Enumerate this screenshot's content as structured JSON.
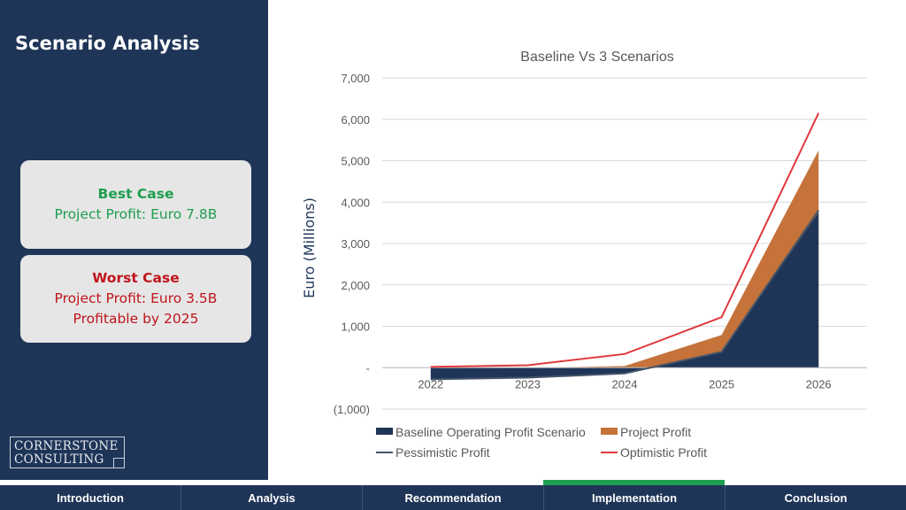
{
  "sidebar": {
    "title": "Scenario Analysis",
    "cards": [
      {
        "heading": "Best Case",
        "lines": [
          "Project Profit: Euro 7.8B"
        ],
        "color": "#1f9e4f"
      },
      {
        "heading": "Worst Case",
        "lines": [
          "Project Profit: Euro 3.5B",
          "Profitable by 2025"
        ],
        "color": "#c0151c"
      }
    ],
    "logo": [
      "CORNERSTONE",
      "CONSULTING"
    ]
  },
  "nav": {
    "items": [
      "Introduction",
      "Analysis",
      "Recommendation",
      "Implementation",
      "Conclusion"
    ],
    "active": "Implementation"
  },
  "chart_data": {
    "type": "area",
    "title": "Baseline Vs 3 Scenarios",
    "ylabel": "Euro (Millions)",
    "xlabel": "",
    "categories": [
      "2022",
      "2023",
      "2024",
      "2025",
      "2026"
    ],
    "ylim": [
      -1000,
      7000
    ],
    "yticks": [
      "(1,000)",
      "-",
      "1,000",
      "2,000",
      "3,000",
      "4,000",
      "5,000",
      "6,000",
      "7,000"
    ],
    "grid": true,
    "legend_position": "bottom",
    "series": [
      {
        "name": "Baseline Operating Profit Scenario",
        "kind": "area",
        "color": "#1f3558",
        "values": [
          -280,
          -240,
          -140,
          380,
          3750
        ]
      },
      {
        "name": "Project Profit",
        "kind": "area",
        "color": "#c5733a",
        "values": [
          -20,
          -10,
          40,
          790,
          5250
        ]
      },
      {
        "name": "Pessimistic Profit",
        "kind": "line",
        "color": "#44546a",
        "values": [
          -280,
          -240,
          -140,
          380,
          3800
        ]
      },
      {
        "name": "Optimistic Profit",
        "kind": "line",
        "color": "#e03a3e",
        "values": [
          20,
          60,
          330,
          1220,
          6150
        ]
      }
    ]
  }
}
